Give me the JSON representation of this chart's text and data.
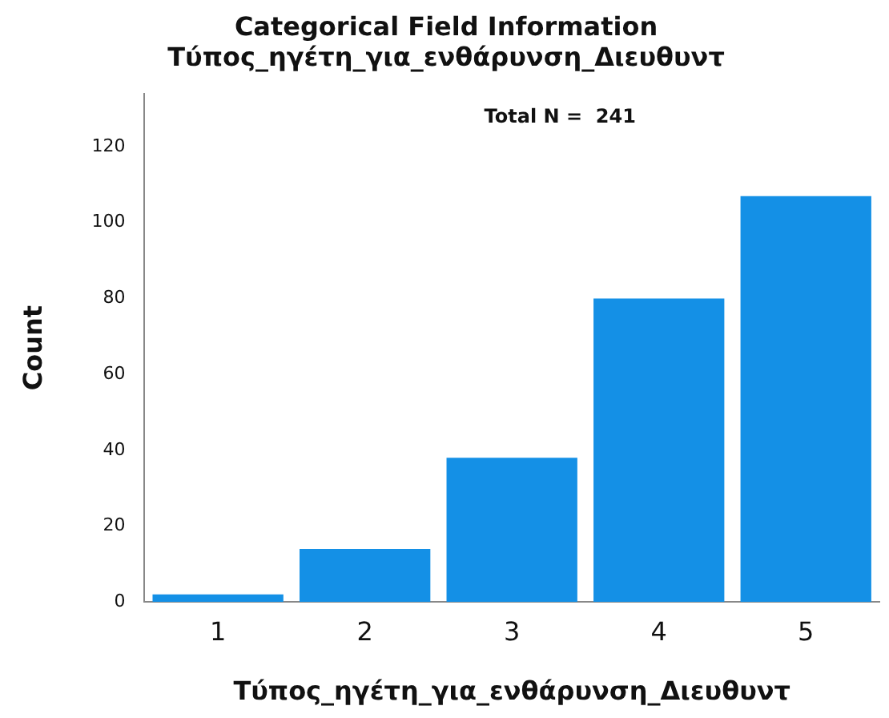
{
  "chart_data": {
    "type": "bar",
    "title": "Categorical Field Information",
    "subtitle": "Τύπος_ηγέτη_για_ενθάρυνση_Διευθυντ",
    "xlabel": "Τύπος_ηγέτη_για_ενθάρυνση_Διευθυντ",
    "ylabel": "Count",
    "categories": [
      "1",
      "2",
      "3",
      "4",
      "5"
    ],
    "values": [
      2,
      14,
      38,
      80,
      107
    ],
    "color": "#1490e6",
    "ylim": [
      0,
      134
    ],
    "yticks": [
      0,
      20,
      40,
      60,
      80,
      100,
      120
    ],
    "grid": false,
    "legend": false,
    "annotations": [
      "Total N =  241"
    ]
  }
}
